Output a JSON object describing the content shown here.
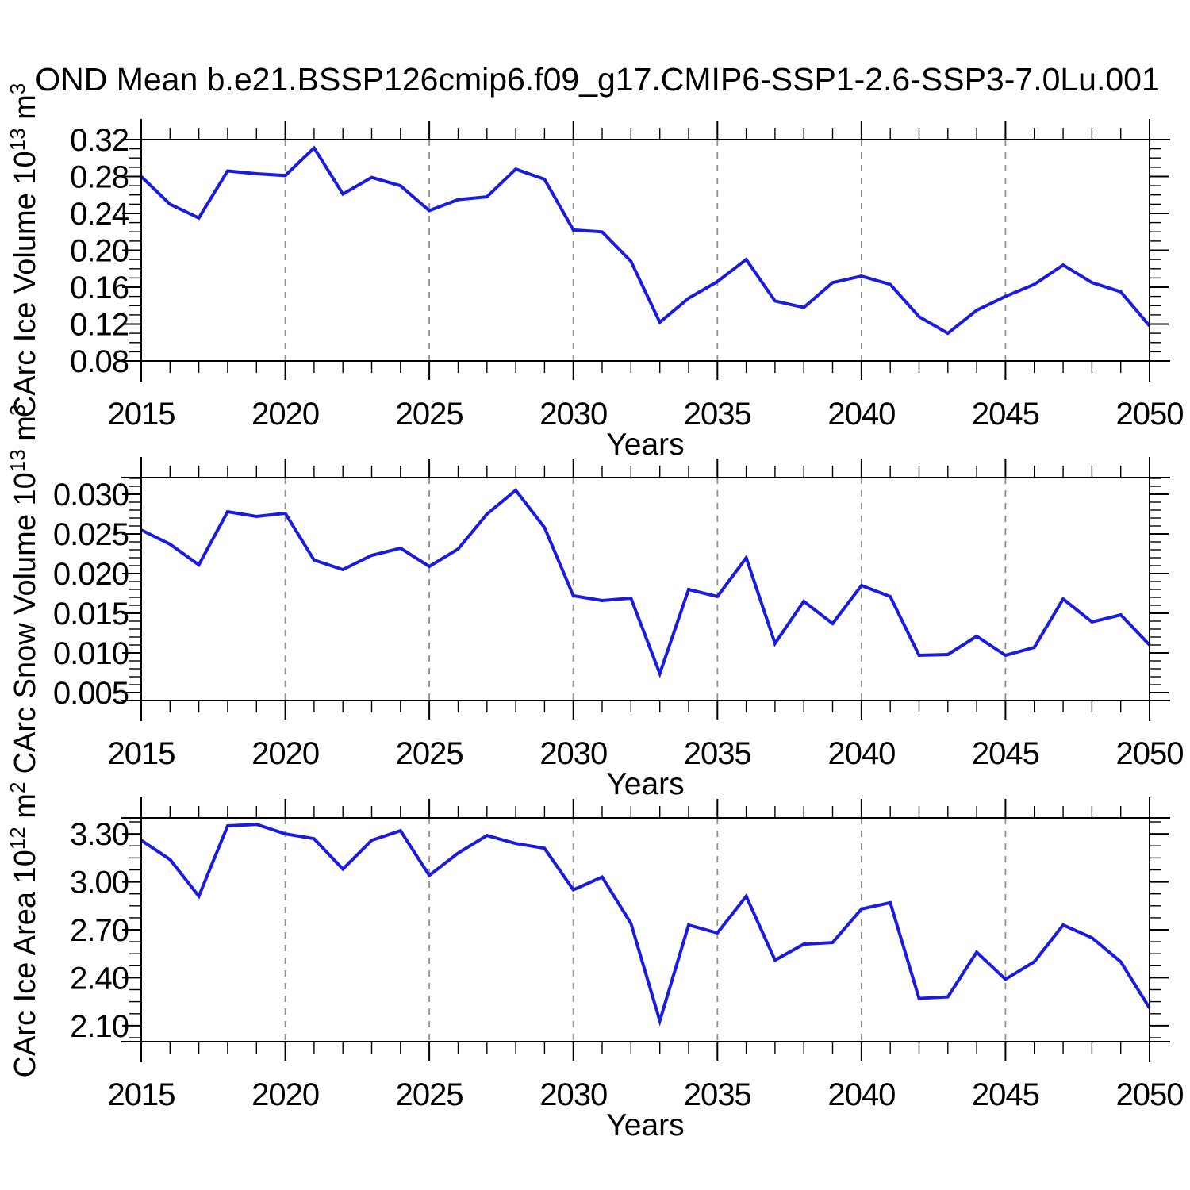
{
  "title": "OND Mean b.e21.BSSP126cmip6.f09_g17.CMIP6-SSP1-2.6-SSP3-7.0Lu.001",
  "colors": {
    "line": "#1a1ae0",
    "grid": "#909090",
    "axis": "#000000",
    "background": "#ffffff"
  },
  "x_axis": {
    "label": "Years",
    "min": 2015,
    "max": 2050,
    "major_ticks": [
      2015,
      2020,
      2025,
      2030,
      2035,
      2040,
      2045,
      2050
    ],
    "tick_labels": [
      "2015",
      "2020",
      "2025",
      "2030",
      "2035",
      "2040",
      "2045",
      "2050"
    ],
    "minor_step": 1,
    "gridlines": [
      2020,
      2025,
      2030,
      2035,
      2040,
      2045
    ]
  },
  "years": [
    2015,
    2016,
    2017,
    2018,
    2019,
    2020,
    2021,
    2022,
    2023,
    2024,
    2025,
    2026,
    2027,
    2028,
    2029,
    2030,
    2031,
    2032,
    2033,
    2034,
    2035,
    2036,
    2037,
    2038,
    2039,
    2040,
    2041,
    2042,
    2043,
    2044,
    2045,
    2046,
    2047,
    2048,
    2049,
    2050
  ],
  "chart_data": [
    {
      "type": "line",
      "series_name": "CArc Ice Volume",
      "ylabel_base": "CArc Ice Volume 10",
      "ylabel_exp": "13",
      "ylabel_unit": " m",
      "ylabel_unit_exp": "3",
      "xlabel": "Years",
      "ylim": [
        0.08,
        0.32
      ],
      "ytick_values": [
        0.08,
        0.12,
        0.16,
        0.2,
        0.24,
        0.28,
        0.32
      ],
      "ytick_labels": [
        "0.08",
        "0.12",
        "0.16",
        "0.20",
        "0.24",
        "0.28",
        "0.32"
      ],
      "y_minor_step": 0.01,
      "grid": "x-dashed",
      "legend": "none",
      "values": [
        0.28,
        0.25,
        0.235,
        0.286,
        0.283,
        0.281,
        0.311,
        0.261,
        0.279,
        0.27,
        0.243,
        0.255,
        0.258,
        0.288,
        0.277,
        0.222,
        0.22,
        0.188,
        0.122,
        0.148,
        0.166,
        0.19,
        0.145,
        0.138,
        0.165,
        0.172,
        0.163,
        0.128,
        0.11,
        0.135,
        0.15,
        0.163,
        0.184,
        0.165,
        0.155,
        0.118
      ]
    },
    {
      "type": "line",
      "series_name": "CArc Snow Volume",
      "ylabel_base": "CArc Snow Volume 10",
      "ylabel_exp": "13",
      "ylabel_unit": " m",
      "ylabel_unit_exp": "3",
      "xlabel": "Years",
      "ylim": [
        0.004,
        0.0321
      ],
      "ytick_values": [
        0.005,
        0.01,
        0.015,
        0.02,
        0.025,
        0.03
      ],
      "ytick_labels": [
        "0.005",
        "0.010",
        "0.015",
        "0.020",
        "0.025",
        "0.030"
      ],
      "y_minor_step": 0.001,
      "grid": "x-dashed",
      "legend": "none",
      "values": [
        0.0255,
        0.0237,
        0.0211,
        0.0278,
        0.0272,
        0.0276,
        0.0217,
        0.0205,
        0.0223,
        0.0232,
        0.0209,
        0.0231,
        0.0275,
        0.0305,
        0.0258,
        0.0172,
        0.0166,
        0.0169,
        0.0074,
        0.018,
        0.0171,
        0.022,
        0.0112,
        0.0165,
        0.0137,
        0.0185,
        0.0171,
        0.0097,
        0.0098,
        0.0121,
        0.0097,
        0.0107,
        0.0168,
        0.0139,
        0.0148,
        0.011
      ]
    },
    {
      "type": "line",
      "series_name": "CArc Ice Area",
      "ylabel_base": "CArc Ice Area 10",
      "ylabel_exp": "12",
      "ylabel_unit": " m",
      "ylabel_unit_exp": "2",
      "xlabel": "Years",
      "ylim": [
        2.0,
        3.4
      ],
      "ytick_values": [
        2.1,
        2.4,
        2.7,
        3.0,
        3.3
      ],
      "ytick_labels": [
        "2.10",
        "2.40",
        "2.70",
        "3.00",
        "3.30"
      ],
      "y_minor_step": 0.075,
      "grid": "x-dashed",
      "legend": "none",
      "values": [
        3.26,
        3.14,
        2.91,
        3.35,
        3.36,
        3.3,
        3.27,
        3.08,
        3.26,
        3.32,
        3.04,
        3.18,
        3.29,
        3.24,
        3.21,
        2.95,
        3.03,
        2.74,
        2.13,
        2.73,
        2.68,
        2.91,
        2.51,
        2.61,
        2.62,
        2.83,
        2.87,
        2.27,
        2.28,
        2.56,
        2.39,
        2.5,
        2.73,
        2.65,
        2.5,
        2.21
      ]
    }
  ]
}
